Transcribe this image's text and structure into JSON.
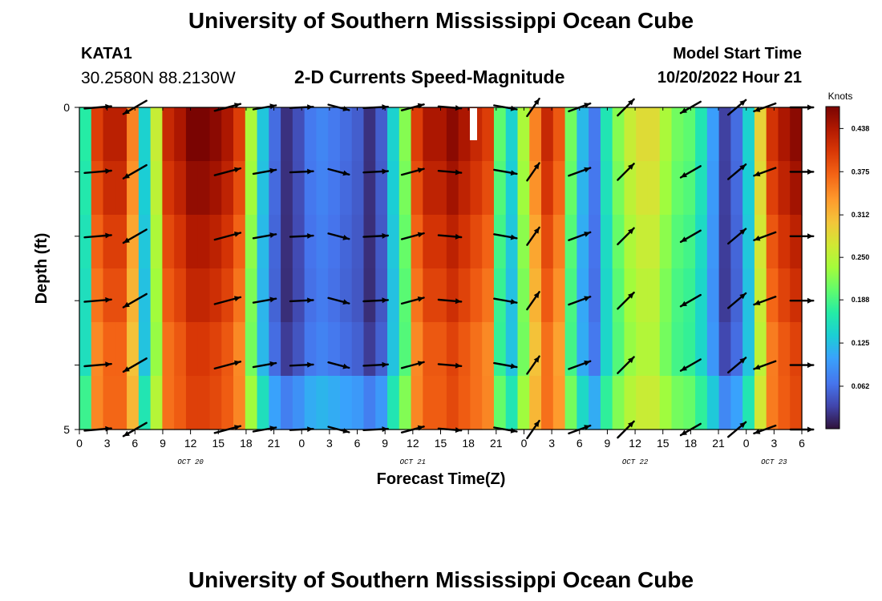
{
  "header": {
    "title": "University of Southern Mississippi Ocean Cube",
    "station": "KATA1",
    "coordinates": "30.2580N  88.2130W",
    "subtitle": "2-D Currents Speed-Magnitude",
    "model_start_label": "Model Start Time",
    "model_start_value": "10/20/2022 Hour 21"
  },
  "footer": {
    "title": "University of Southern Mississippi Ocean Cube"
  },
  "chart_data": {
    "type": "heatmap",
    "title": "2-D Currents Speed-Magnitude",
    "xlabel": "Forecast Time(Z)",
    "ylabel": "Depth (ft)",
    "x_range_hours": [
      0,
      78
    ],
    "y_range_ft": [
      0,
      5
    ],
    "x_tick_labels": [
      "0",
      "3",
      "6",
      "9",
      "12",
      "15",
      "18",
      "21",
      "0",
      "3",
      "6",
      "9",
      "12",
      "15",
      "18",
      "21",
      "0",
      "3",
      "6",
      "9",
      "12",
      "15",
      "18",
      "21",
      "0",
      "3",
      "6"
    ],
    "x_ticks_hours": [
      0,
      3,
      6,
      9,
      12,
      15,
      18,
      21,
      24,
      27,
      30,
      33,
      36,
      39,
      42,
      45,
      48,
      51,
      54,
      57,
      60,
      63,
      66,
      69,
      72,
      75,
      78
    ],
    "y_ticks": [
      0,
      5
    ],
    "date_labels": [
      {
        "text": "OCT 20",
        "hour": 12
      },
      {
        "text": "OCT 21",
        "hour": 36
      },
      {
        "text": "OCT 22",
        "hour": 60
      },
      {
        "text": "OCT 23",
        "hour": 75
      }
    ],
    "colorbar": {
      "units": "Knots",
      "min": 0.0,
      "max": 0.47,
      "ticks": [
        0.062,
        0.125,
        0.188,
        0.25,
        0.312,
        0.375,
        0.438
      ],
      "tick_labels": [
        "0.062",
        "0.125",
        "0.188",
        "0.250",
        "0.312",
        "0.375",
        "0.438"
      ]
    },
    "surface_speed_knots": [
      0.17,
      0.4,
      0.43,
      0.43,
      0.35,
      0.14,
      0.26,
      0.42,
      0.44,
      0.47,
      0.47,
      0.46,
      0.44,
      0.4,
      0.24,
      0.13,
      0.06,
      0.02,
      0.04,
      0.07,
      0.08,
      0.07,
      0.06,
      0.05,
      0.02,
      0.05,
      0.14,
      0.22,
      0.4,
      0.44,
      0.44,
      0.46,
      0.44,
      0.42,
      0.4,
      0.2,
      0.14,
      0.24,
      0.35,
      0.42,
      0.38,
      0.21,
      0.12,
      0.07,
      0.16,
      0.22,
      0.26,
      0.28,
      0.28,
      0.24,
      0.21,
      0.2,
      0.16,
      0.1,
      0.03,
      0.06,
      0.14,
      0.29,
      0.41,
      0.44,
      0.46
    ],
    "depth_factors": [
      1.0,
      0.97,
      0.93,
      0.9,
      0.84,
      0.72
    ],
    "depth_offsets": [
      0,
      0,
      0,
      0,
      0.01,
      0.06
    ],
    "vector_hours": [
      2,
      6,
      16,
      20,
      24,
      28,
      32,
      36,
      40,
      46,
      49,
      54,
      59,
      66,
      71,
      74,
      78
    ],
    "vector_angles_deg": [
      5,
      -150,
      15,
      10,
      3,
      -15,
      3,
      15,
      -5,
      -10,
      55,
      20,
      45,
      -150,
      40,
      -160,
      0
    ],
    "vector_length_knots": [
      0.35,
      0.35,
      0.35,
      0.3,
      0.3,
      0.28,
      0.32,
      0.3,
      0.3,
      0.3,
      0.28,
      0.3,
      0.3,
      0.3,
      0.3,
      0.3,
      0.3
    ]
  }
}
